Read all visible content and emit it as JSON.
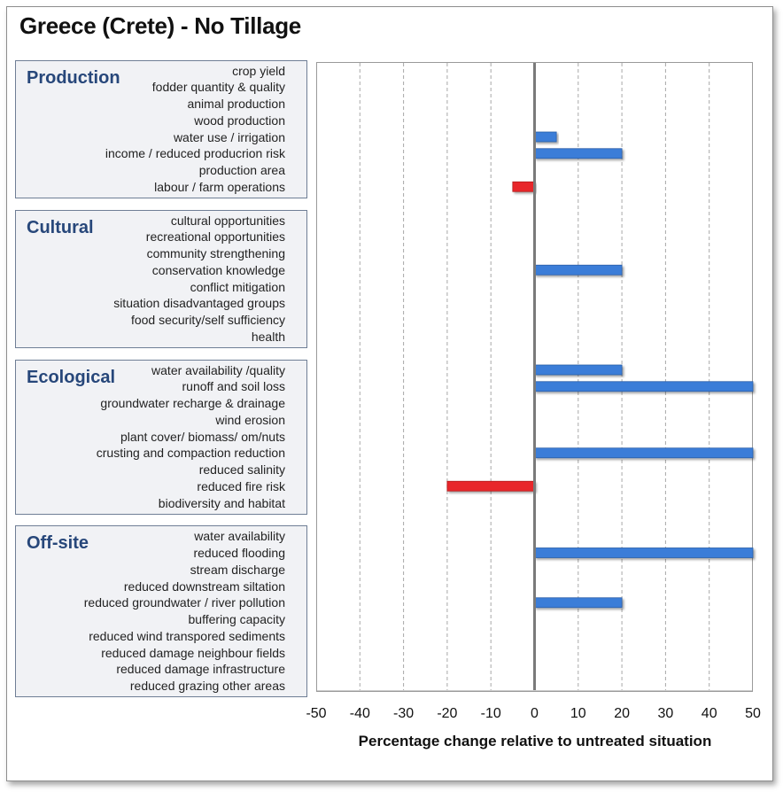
{
  "chart_data": {
    "type": "bar",
    "orientation": "horizontal",
    "title": "Greece (Crete) - No Tillage",
    "xlabel": "Percentage change relative to untreated situation",
    "xlim": [
      -50,
      50
    ],
    "xticks": [
      -50,
      -40,
      -30,
      -20,
      -10,
      0,
      10,
      20,
      30,
      40,
      50
    ],
    "grid": "vertical dashed",
    "colors": {
      "positive": "#3b7dd8",
      "negative": "#e8262b",
      "group_title": "#27477a"
    },
    "groups": [
      {
        "name": "Production",
        "items": [
          {
            "label": "crop yield",
            "value": null
          },
          {
            "label": "fodder quantity & quality",
            "value": null
          },
          {
            "label": "animal production",
            "value": null
          },
          {
            "label": "wood production",
            "value": null
          },
          {
            "label": "water use / irrigation",
            "value": 5
          },
          {
            "label": "income / reduced producrion risk",
            "value": 20
          },
          {
            "label": "production area",
            "value": null
          },
          {
            "label": "labour / farm operations",
            "value": -5
          }
        ]
      },
      {
        "name": "Cultural",
        "items": [
          {
            "label": "cultural opportunities",
            "value": null
          },
          {
            "label": "recreational opportunities",
            "value": null
          },
          {
            "label": "community strengthening",
            "value": null
          },
          {
            "label": "conservation knowledge",
            "value": 20
          },
          {
            "label": "conflict mitigation",
            "value": null
          },
          {
            "label": "situation disadvantaged groups",
            "value": null
          },
          {
            "label": "food security/self sufficiency",
            "value": null
          },
          {
            "label": "health",
            "value": null
          }
        ]
      },
      {
        "name": "Ecological",
        "items": [
          {
            "label": "water availability /quality",
            "value": 20
          },
          {
            "label": "runoff and soil loss",
            "value": 50
          },
          {
            "label": "groundwater recharge & drainage",
            "value": null
          },
          {
            "label": "wind erosion",
            "value": null
          },
          {
            "label": "plant cover/ biomass/ om/nuts",
            "value": null
          },
          {
            "label": "crusting and compaction reduction",
            "value": 50
          },
          {
            "label": "reduced salinity",
            "value": null
          },
          {
            "label": "reduced fire risk",
            "value": -20
          },
          {
            "label": "biodiversity and habitat",
            "value": null
          }
        ]
      },
      {
        "name": "Off-site",
        "items": [
          {
            "label": "water availability",
            "value": null
          },
          {
            "label": "reduced flooding",
            "value": 50
          },
          {
            "label": "stream discharge",
            "value": null
          },
          {
            "label": "reduced downstream siltation",
            "value": null
          },
          {
            "label": "reduced groundwater / river pollution",
            "value": 20
          },
          {
            "label": "buffering capacity",
            "value": null
          },
          {
            "label": "reduced wind transpored sediments",
            "value": null
          },
          {
            "label": "reduced damage neighbour fields",
            "value": null
          },
          {
            "label": "reduced damage infrastructure",
            "value": null
          },
          {
            "label": "reduced grazing other areas",
            "value": null
          }
        ]
      }
    ]
  }
}
